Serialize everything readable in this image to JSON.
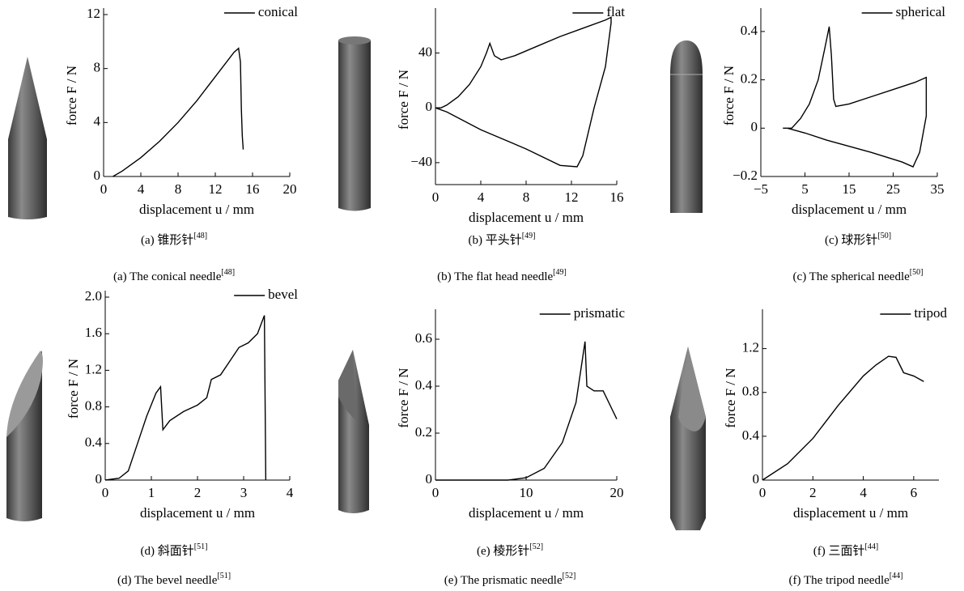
{
  "chart_data": [
    {
      "type": "line",
      "xlabel": "displacement u / mm",
      "ylabel": "force F / N",
      "xlim": [
        0,
        20
      ],
      "xticks": [
        0,
        4,
        8,
        12,
        16,
        20
      ],
      "ylim": [
        0,
        12
      ],
      "yticks": [
        0,
        4,
        8,
        12
      ],
      "series": [
        {
          "name": "conical",
          "color": "#000000",
          "x": [
            1,
            2,
            4,
            6,
            8,
            10,
            12,
            14,
            14.5,
            14.7,
            14.8,
            14.9,
            15
          ],
          "values": [
            0,
            0.4,
            1.4,
            2.6,
            4.0,
            5.6,
            7.4,
            9.2,
            9.5,
            8.5,
            5,
            3,
            2
          ]
        }
      ],
      "caption_zh": "(a) 锥形针",
      "caption_en": "(a) The conical needle",
      "reference": "[48]"
    },
    {
      "type": "line",
      "xlabel": "displacement u / mm",
      "ylabel": "force F / N",
      "xlim": [
        0,
        16
      ],
      "xticks": [
        0,
        4,
        8,
        12,
        16
      ],
      "ylim": [
        -56,
        68
      ],
      "yticks": [
        {
          "value": -40,
          "label": "−40"
        },
        0,
        40
      ],
      "series": [
        {
          "name": "flat",
          "color": "#000000",
          "x": [
            0,
            0.5,
            1,
            2,
            3,
            4,
            4.5,
            4.8,
            5.2,
            5.8,
            7,
            9,
            11,
            13,
            15,
            15.5,
            15.5,
            15,
            14,
            13,
            12.5,
            11,
            8,
            4,
            1,
            0
          ],
          "values": [
            0,
            0,
            2,
            8,
            17,
            30,
            40,
            47,
            38,
            35,
            38,
            45,
            52,
            58,
            64,
            66,
            62,
            30,
            0,
            -35,
            -43,
            -42,
            -30,
            -16,
            -3,
            0
          ]
        }
      ],
      "caption_zh": "(b) 平头针",
      "caption_en": "(b) The flat head needle",
      "reference": "[49]"
    },
    {
      "type": "line",
      "xlabel": "displacement u / mm",
      "ylabel": "force F / N",
      "xlim": [
        -5,
        35
      ],
      "xticks": [
        {
          "value": -5,
          "label": "−5"
        },
        5,
        15,
        25,
        35
      ],
      "ylim": [
        -0.2,
        0.47
      ],
      "yticks": [
        {
          "value": -0.2,
          "label": "−0.2"
        },
        0,
        0.2,
        0.4
      ],
      "series": [
        {
          "name": "spherical",
          "color": "#000000",
          "x": [
            0,
            2,
            4,
            6,
            8,
            9.5,
            10.5,
            11,
            11.5,
            12,
            15,
            20,
            25,
            30,
            32.5,
            32.5,
            31,
            29.5,
            27,
            20,
            10,
            5,
            3,
            1
          ],
          "values": [
            0,
            0,
            0.04,
            0.1,
            0.2,
            0.33,
            0.42,
            0.3,
            0.12,
            0.09,
            0.1,
            0.13,
            0.16,
            0.19,
            0.21,
            0.05,
            -0.1,
            -0.16,
            -0.14,
            -0.1,
            -0.05,
            -0.02,
            -0.01,
            0
          ]
        }
      ],
      "caption_zh": "(c) 球形针",
      "caption_en": "(c) The spherical needle",
      "reference": "[50]"
    },
    {
      "type": "line",
      "xlabel": "displacement u / mm",
      "ylabel": "force F / N",
      "xlim": [
        0,
        4
      ],
      "xticks": [
        0,
        1,
        2,
        3,
        4
      ],
      "ylim": [
        0,
        2
      ],
      "yticks": [
        0,
        0.4,
        0.8,
        1.2,
        1.6,
        {
          "value": 2,
          "label": "2.0"
        }
      ],
      "series": [
        {
          "name": "bevel",
          "color": "#000000",
          "x": [
            0,
            0.3,
            0.5,
            0.7,
            0.9,
            1.1,
            1.2,
            1.25,
            1.4,
            1.7,
            2,
            2.2,
            2.3,
            2.5,
            2.7,
            2.9,
            3.1,
            3.3,
            3.45,
            3.48
          ],
          "values": [
            0,
            0.02,
            0.1,
            0.4,
            0.7,
            0.95,
            1.02,
            0.55,
            0.65,
            0.75,
            0.82,
            0.9,
            1.1,
            1.15,
            1.3,
            1.45,
            1.5,
            1.6,
            1.8,
            0
          ]
        }
      ],
      "caption_zh": "(d) 斜面针",
      "caption_en": "(d) The bevel needle",
      "reference": "[51]"
    },
    {
      "type": "line",
      "xlabel": "displacement u / mm",
      "ylabel": "force F / N",
      "xlim": [
        0,
        20
      ],
      "xticks": [
        0,
        10,
        20
      ],
      "ylim": [
        0,
        0.7
      ],
      "yticks": [
        0,
        0.2,
        0.4,
        0.6
      ],
      "series": [
        {
          "name": "prismatic",
          "color": "#000000",
          "x": [
            0,
            8,
            10,
            12,
            14,
            15.5,
            16.5,
            16.7,
            17.5,
            18.5,
            19.5,
            20
          ],
          "values": [
            0,
            0,
            0.01,
            0.05,
            0.16,
            0.33,
            0.59,
            0.4,
            0.38,
            0.38,
            0.3,
            0.26
          ]
        }
      ],
      "caption_zh": "(e) 棱形针",
      "caption_en": "(e) The prismatic needle",
      "reference": "[52]"
    },
    {
      "type": "line",
      "xlabel": "displacement u / mm",
      "ylabel": "force F / N",
      "xlim": [
        0,
        7
      ],
      "xticks": [
        0,
        2,
        4,
        6
      ],
      "ylim": [
        0,
        1.5
      ],
      "yticks": [
        0,
        0.4,
        0.8,
        1.2
      ],
      "series": [
        {
          "name": "tripod",
          "color": "#000000",
          "x": [
            0,
            1,
            2,
            3,
            4,
            4.5,
            5,
            5.3,
            5.6,
            6,
            6.4
          ],
          "values": [
            0,
            0.15,
            0.38,
            0.68,
            0.95,
            1.05,
            1.13,
            1.12,
            0.98,
            0.95,
            0.9
          ]
        }
      ],
      "caption_zh": "(f) 三面针",
      "caption_en": "(f) The tripod needle",
      "reference": "[44]"
    }
  ]
}
